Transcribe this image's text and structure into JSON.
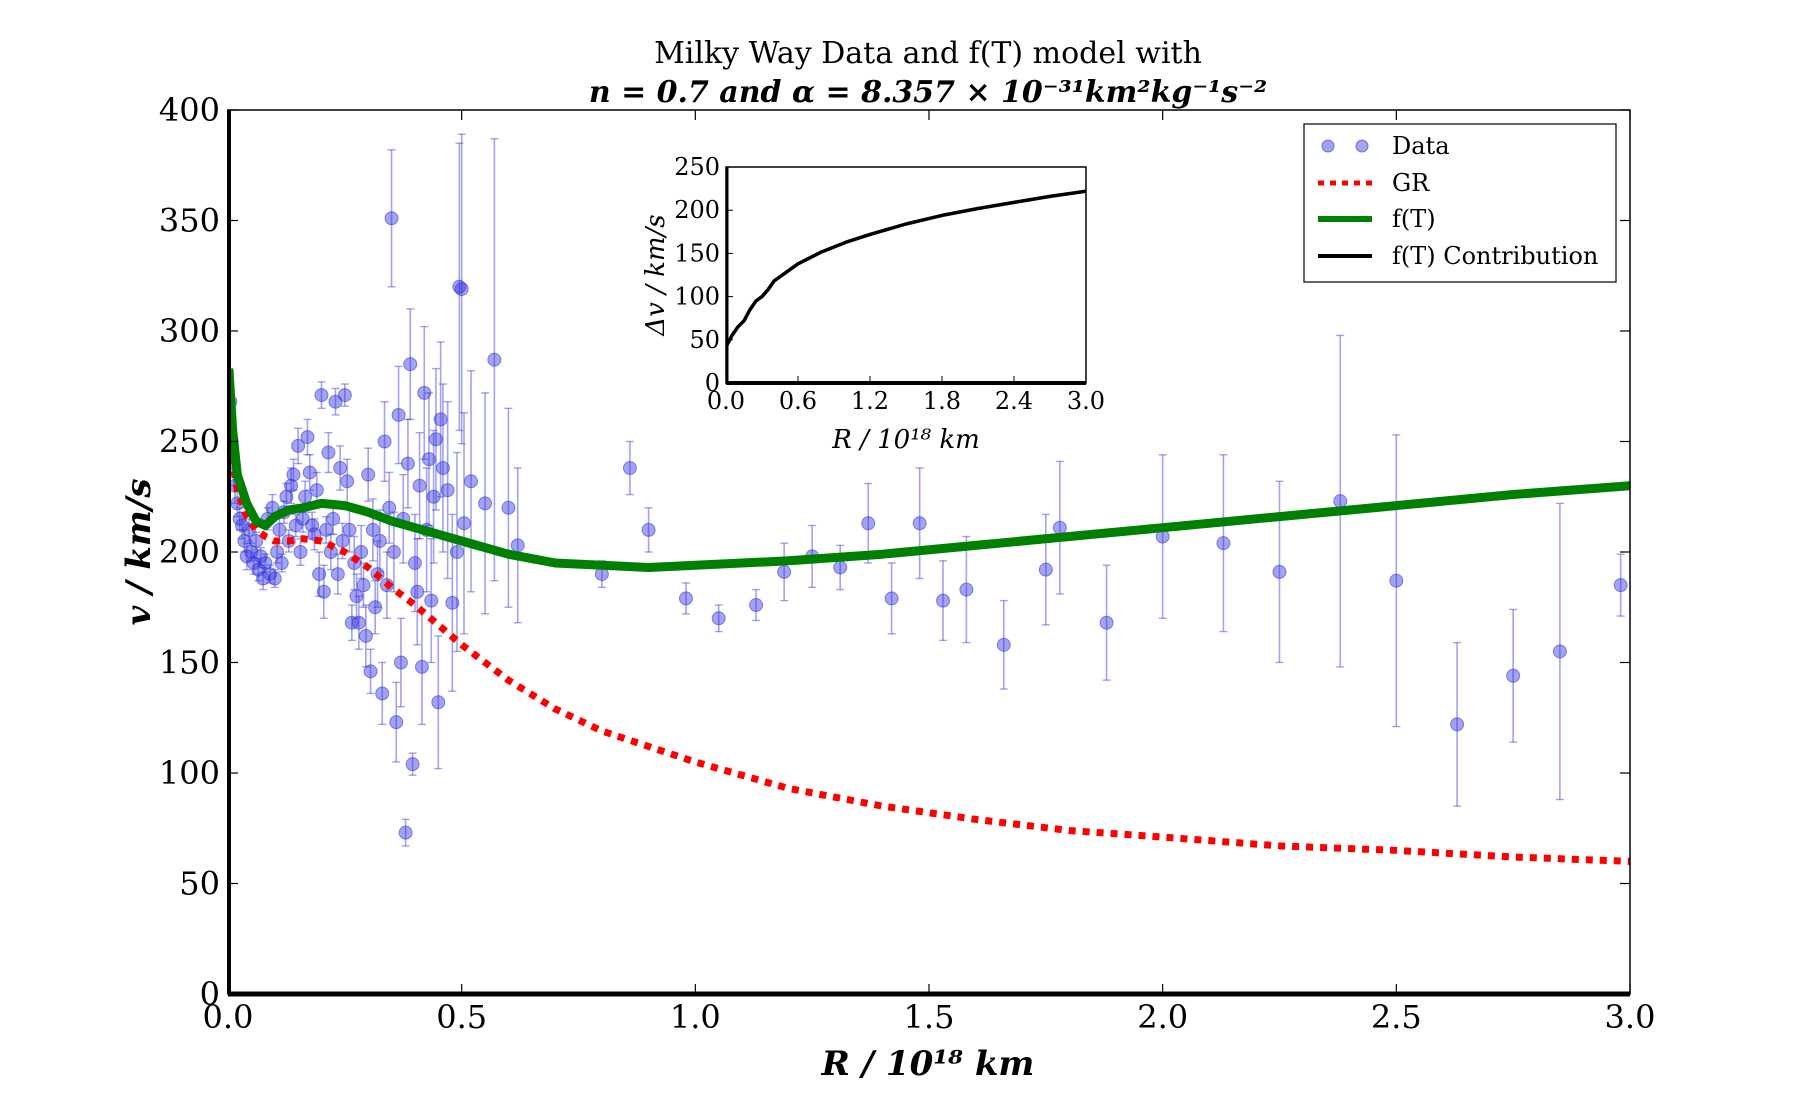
{
  "chart_data": {
    "type": "scatter",
    "title_line1": "Milky Way Data and  f(T) model with",
    "title_line2": "n = 0.7 and α = 8.357 × 10⁻³¹km²kg⁻¹s⁻²",
    "xlabel": "R / 10¹⁸ km",
    "ylabel": "v / km/s",
    "xlim": [
      0.0,
      3.0
    ],
    "ylim": [
      0,
      400
    ],
    "xticks": [
      "0.0",
      "0.5",
      "1.0",
      "1.5",
      "2.0",
      "2.5",
      "3.0"
    ],
    "xtick_values": [
      0.0,
      0.5,
      1.0,
      1.5,
      2.0,
      2.5,
      3.0
    ],
    "yticks": [
      "0",
      "50",
      "100",
      "150",
      "200",
      "250",
      "300",
      "350",
      "400"
    ],
    "ytick_values": [
      0,
      50,
      100,
      150,
      200,
      250,
      300,
      350,
      400
    ],
    "colors": {
      "data": "#3333dd",
      "gr": "#ff0000",
      "ft": "#008000",
      "contribution": "#000000"
    },
    "legend": {
      "position": "top-right",
      "entries": [
        {
          "label": "Data",
          "style": "points"
        },
        {
          "label": "GR",
          "style": "dotted"
        },
        {
          "label": "f(T)",
          "style": "solid-green"
        },
        {
          "label": "f(T) Contribution",
          "style": "solid-black"
        }
      ]
    },
    "series": [
      {
        "name": "Data",
        "kind": "points_with_errors",
        "points": [
          [
            0.005,
            268,
            6
          ],
          [
            0.008,
            250,
            8
          ],
          [
            0.012,
            240,
            10
          ],
          [
            0.015,
            230,
            8
          ],
          [
            0.02,
            222,
            6
          ],
          [
            0.025,
            215,
            5
          ],
          [
            0.03,
            212,
            6
          ],
          [
            0.035,
            205,
            5
          ],
          [
            0.04,
            198,
            6
          ],
          [
            0.045,
            210,
            5
          ],
          [
            0.05,
            200,
            4
          ],
          [
            0.055,
            195,
            5
          ],
          [
            0.06,
            205,
            4
          ],
          [
            0.065,
            192,
            5
          ],
          [
            0.07,
            198,
            4
          ],
          [
            0.075,
            188,
            5
          ],
          [
            0.08,
            195,
            4
          ],
          [
            0.085,
            215,
            5
          ],
          [
            0.09,
            190,
            4
          ],
          [
            0.095,
            220,
            6
          ],
          [
            0.1,
            188,
            4
          ],
          [
            0.105,
            200,
            5
          ],
          [
            0.11,
            210,
            6
          ],
          [
            0.115,
            195,
            4
          ],
          [
            0.12,
            218,
            5
          ],
          [
            0.125,
            225,
            6
          ],
          [
            0.13,
            205,
            5
          ],
          [
            0.135,
            230,
            8
          ],
          [
            0.14,
            235,
            7
          ],
          [
            0.145,
            212,
            5
          ],
          [
            0.15,
            248,
            8
          ],
          [
            0.155,
            200,
            6
          ],
          [
            0.16,
            215,
            6
          ],
          [
            0.165,
            225,
            7
          ],
          [
            0.17,
            252,
            8
          ],
          [
            0.175,
            236,
            8
          ],
          [
            0.18,
            212,
            6
          ],
          [
            0.185,
            208,
            7
          ],
          [
            0.19,
            228,
            8
          ],
          [
            0.195,
            190,
            10
          ],
          [
            0.2,
            271,
            6
          ],
          [
            0.205,
            182,
            12
          ],
          [
            0.21,
            210,
            6
          ],
          [
            0.215,
            245,
            9
          ],
          [
            0.22,
            200,
            8
          ],
          [
            0.225,
            215,
            7
          ],
          [
            0.23,
            268,
            6
          ],
          [
            0.235,
            190,
            9
          ],
          [
            0.24,
            238,
            10
          ],
          [
            0.245,
            205,
            8
          ],
          [
            0.25,
            271,
            5
          ],
          [
            0.255,
            232,
            10
          ],
          [
            0.26,
            210,
            10
          ],
          [
            0.265,
            168,
            8
          ],
          [
            0.27,
            195,
            12
          ],
          [
            0.275,
            180,
            10
          ],
          [
            0.28,
            168,
            12
          ],
          [
            0.285,
            200,
            12
          ],
          [
            0.29,
            185,
            10
          ],
          [
            0.295,
            162,
            14
          ],
          [
            0.3,
            235,
            12
          ],
          [
            0.305,
            146,
            10
          ],
          [
            0.31,
            210,
            14
          ],
          [
            0.315,
            175,
            12
          ],
          [
            0.32,
            190,
            15
          ],
          [
            0.325,
            205,
            14
          ],
          [
            0.33,
            136,
            14
          ],
          [
            0.335,
            250,
            18
          ],
          [
            0.34,
            185,
            15
          ],
          [
            0.345,
            220,
            16
          ],
          [
            0.35,
            351,
            31
          ],
          [
            0.355,
            200,
            18
          ],
          [
            0.36,
            123,
            18
          ],
          [
            0.365,
            262,
            22
          ],
          [
            0.37,
            150,
            20
          ],
          [
            0.375,
            215,
            20
          ],
          [
            0.38,
            73,
            6
          ],
          [
            0.385,
            240,
            20
          ],
          [
            0.39,
            285,
            25
          ],
          [
            0.395,
            104,
            5
          ],
          [
            0.4,
            195,
            22
          ],
          [
            0.405,
            182,
            24
          ],
          [
            0.41,
            230,
            24
          ],
          [
            0.415,
            148,
            26
          ],
          [
            0.42,
            272,
            30
          ],
          [
            0.425,
            210,
            28
          ],
          [
            0.43,
            242,
            30
          ],
          [
            0.435,
            178,
            28
          ],
          [
            0.44,
            225,
            30
          ],
          [
            0.445,
            251,
            32
          ],
          [
            0.45,
            132,
            30
          ],
          [
            0.455,
            260,
            35
          ],
          [
            0.46,
            238,
            38
          ],
          [
            0.47,
            228,
            40
          ],
          [
            0.48,
            177,
            40
          ],
          [
            0.49,
            200,
            45
          ],
          [
            0.495,
            320,
            65
          ],
          [
            0.5,
            319,
            70
          ],
          [
            0.505,
            213,
            50
          ],
          [
            0.52,
            232,
            50
          ],
          [
            0.55,
            222,
            50
          ],
          [
            0.57,
            287,
            100
          ],
          [
            0.6,
            220,
            45
          ],
          [
            0.62,
            203,
            35
          ],
          [
            0.8,
            190,
            6
          ],
          [
            0.86,
            238,
            12
          ],
          [
            0.9,
            210,
            10
          ],
          [
            0.98,
            179,
            7
          ],
          [
            1.05,
            170,
            6
          ],
          [
            1.13,
            176,
            7
          ],
          [
            1.19,
            191,
            13
          ],
          [
            1.25,
            198,
            14
          ],
          [
            1.31,
            193,
            10
          ],
          [
            1.37,
            213,
            18
          ],
          [
            1.42,
            179,
            16
          ],
          [
            1.48,
            213,
            25
          ],
          [
            1.53,
            178,
            18
          ],
          [
            1.58,
            183,
            24
          ],
          [
            1.66,
            158,
            20
          ],
          [
            1.75,
            192,
            25
          ],
          [
            1.78,
            211,
            30
          ],
          [
            1.88,
            168,
            26
          ],
          [
            2.0,
            207,
            37
          ],
          [
            2.13,
            204,
            40
          ],
          [
            2.25,
            191,
            41
          ],
          [
            2.38,
            223,
            75
          ],
          [
            2.5,
            187,
            66
          ],
          [
            2.63,
            122,
            37
          ],
          [
            2.75,
            144,
            30
          ],
          [
            2.85,
            155,
            67
          ],
          [
            2.98,
            185,
            14
          ]
        ]
      },
      {
        "name": "GR",
        "kind": "dotted_line",
        "x": [
          0.002,
          0.01,
          0.02,
          0.04,
          0.06,
          0.08,
          0.1,
          0.13,
          0.16,
          0.2,
          0.25,
          0.3,
          0.35,
          0.4,
          0.45,
          0.5,
          0.6,
          0.7,
          0.8,
          1.0,
          1.2,
          1.4,
          1.6,
          1.8,
          2.0,
          2.25,
          2.5,
          2.75,
          3.0
        ],
        "y": [
          262,
          240,
          228,
          216,
          210,
          207,
          205,
          205,
          206,
          205,
          200,
          193,
          184,
          176,
          167,
          158,
          142,
          129,
          119,
          105,
          93,
          85,
          79,
          74,
          71,
          67,
          65,
          62,
          60
        ]
      },
      {
        "name": "f(T)",
        "kind": "solid_line",
        "x": [
          0.002,
          0.01,
          0.02,
          0.04,
          0.06,
          0.08,
          0.1,
          0.13,
          0.16,
          0.2,
          0.25,
          0.3,
          0.35,
          0.4,
          0.45,
          0.5,
          0.6,
          0.7,
          0.8,
          0.9,
          1.0,
          1.2,
          1.4,
          1.6,
          1.8,
          2.0,
          2.25,
          2.5,
          2.75,
          3.0
        ],
        "y": [
          283,
          255,
          235,
          222,
          214,
          212,
          216,
          219,
          220,
          222,
          221,
          218,
          214,
          211,
          208,
          205,
          199,
          195,
          194,
          193,
          194,
          196,
          199,
          203,
          207,
          211,
          216,
          221,
          226,
          230
        ]
      }
    ],
    "inset": {
      "xlabel": "R / 10¹⁸ km",
      "ylabel": "Δv / km/s",
      "xlim": [
        0.0,
        3.0
      ],
      "ylim": [
        0,
        250
      ],
      "xticks": [
        "0.0",
        "0.6",
        "1.2",
        "1.8",
        "2.4",
        "3.0"
      ],
      "xtick_values": [
        0.0,
        0.6,
        1.2,
        1.8,
        2.4,
        3.0
      ],
      "yticks": [
        "0",
        "50",
        "100",
        "150",
        "200",
        "250"
      ],
      "ytick_values": [
        0,
        50,
        100,
        150,
        200,
        250
      ],
      "series": [
        {
          "name": "f(T) Contribution",
          "x": [
            0.0,
            0.05,
            0.1,
            0.15,
            0.2,
            0.25,
            0.3,
            0.35,
            0.4,
            0.5,
            0.6,
            0.8,
            1.0,
            1.2,
            1.5,
            1.8,
            2.1,
            2.4,
            2.7,
            3.0
          ],
          "y": [
            42,
            55,
            65,
            72,
            85,
            95,
            100,
            108,
            118,
            128,
            138,
            152,
            163,
            172,
            184,
            194,
            202,
            209,
            216,
            222
          ]
        }
      ]
    }
  }
}
